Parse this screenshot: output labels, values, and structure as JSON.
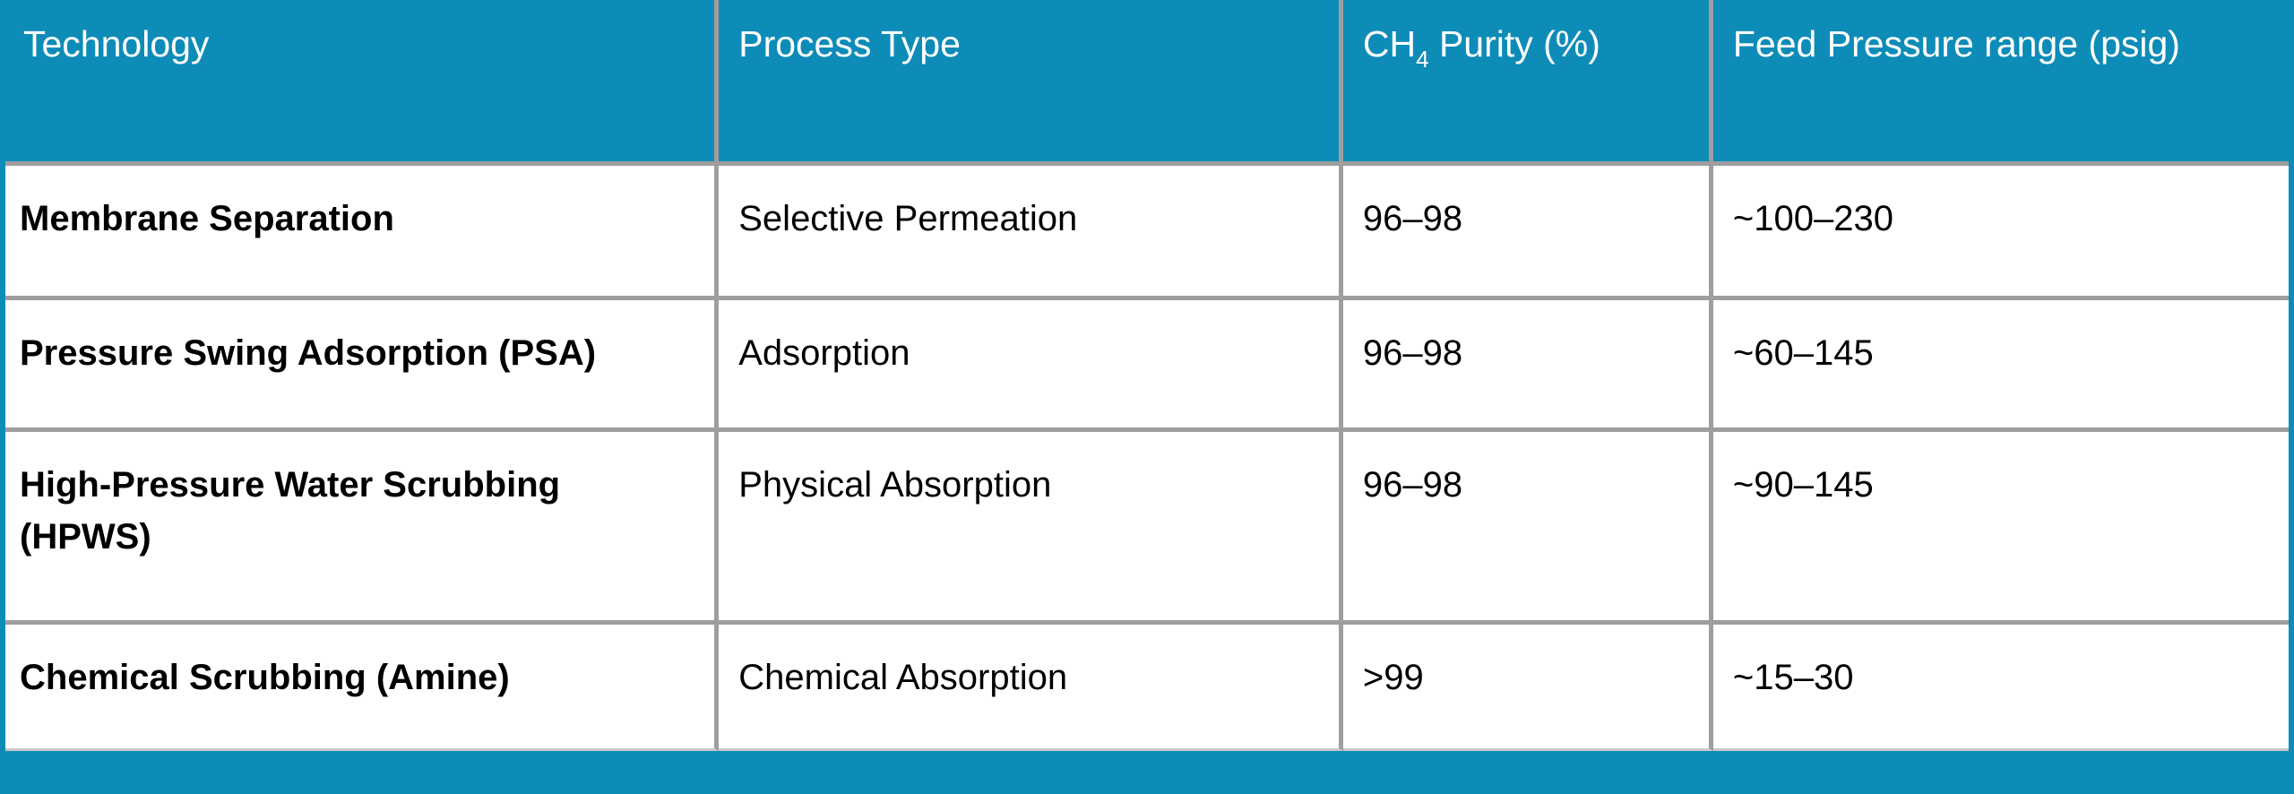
{
  "colors": {
    "accent": "#0e8cb8",
    "grid_line": "#9e9e9e",
    "header_text": "#ffffff",
    "body_text": "#000000"
  },
  "table": {
    "headers": {
      "technology": "Technology",
      "process_type": "Process Type",
      "purity_prefix": "CH",
      "purity_sub": "4",
      "purity_suffix": " Purity (%)",
      "pressure": "Feed Pressure range (psig)"
    },
    "rows": [
      {
        "technology": "Membrane Separation",
        "process_type": "Selective Permeation",
        "purity": "96–98",
        "pressure": "~100–230"
      },
      {
        "technology": "Pressure Swing Adsorption (PSA)",
        "process_type": "Adsorption",
        "purity": "96–98",
        "pressure": "~60–145"
      },
      {
        "technology": "High-Pressure Water Scrubbing (HPWS)",
        "process_type": "Physical Absorption",
        "purity": "96–98",
        "pressure": "~90–145"
      },
      {
        "technology": "Chemical Scrubbing (Amine)",
        "process_type": "Chemical Absorption",
        "purity": ">99",
        "pressure": "~15–30"
      }
    ]
  }
}
